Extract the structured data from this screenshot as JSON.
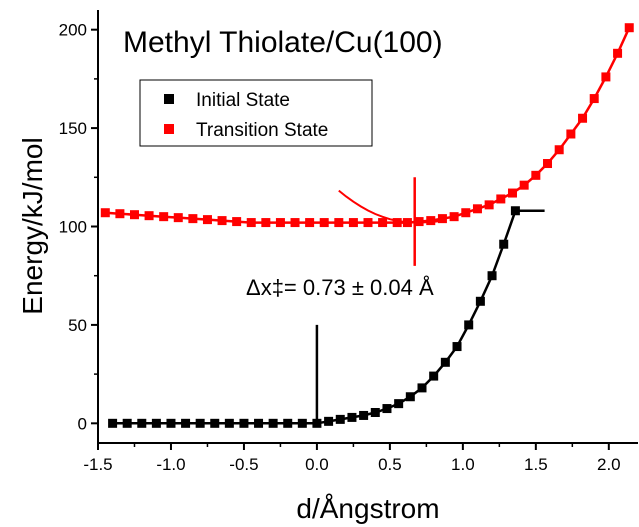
{
  "chart_data": {
    "type": "scatter",
    "title": "Methyl Thiolate/Cu(100)",
    "xlabel": "d/Ångstrom",
    "ylabel": "Energy/kJ/mol",
    "xlim": [
      -1.5,
      2.2
    ],
    "ylim": [
      -10,
      210
    ],
    "xticks": [
      -1.5,
      -1.0,
      -0.5,
      0.0,
      0.5,
      1.0,
      1.5,
      2.0
    ],
    "xtick_labels": [
      "-1.5",
      "-1.0",
      "-0.5",
      "0.0",
      "0.5",
      "1.0",
      "1.5",
      "2.0"
    ],
    "yticks": [
      0,
      50,
      100,
      150,
      200
    ],
    "ytick_labels": [
      "0",
      "50",
      "100",
      "150",
      "200"
    ],
    "legend_position": "upper-left",
    "colors": {
      "initial": "#000000",
      "transition": "#ff0000"
    },
    "series": [
      {
        "name": "Initial State",
        "color": "#000000",
        "x": [
          -1.4,
          -1.3,
          -1.2,
          -1.1,
          -1.0,
          -0.9,
          -0.8,
          -0.7,
          -0.6,
          -0.5,
          -0.4,
          -0.3,
          -0.2,
          -0.1,
          0.0,
          0.08,
          0.16,
          0.24,
          0.32,
          0.4,
          0.48,
          0.56,
          0.64,
          0.72,
          0.8,
          0.88,
          0.96,
          1.04,
          1.12,
          1.2,
          1.28,
          1.36,
          1.44,
          1.52,
          1.56
        ],
        "y": [
          0,
          0,
          0,
          0,
          0,
          0,
          0,
          0,
          0,
          0,
          0,
          0,
          0,
          0,
          0,
          1,
          2,
          3,
          4,
          5.5,
          7.5,
          10,
          13.5,
          18,
          24,
          31,
          39,
          50,
          62,
          75,
          91,
          108,
          108,
          108,
          108
        ]
      },
      {
        "name": "Transition State",
        "color": "#ff0000",
        "x": [
          -1.45,
          -1.35,
          -1.25,
          -1.15,
          -1.05,
          -0.95,
          -0.85,
          -0.75,
          -0.65,
          -0.55,
          -0.45,
          -0.35,
          -0.25,
          -0.15,
          -0.05,
          0.05,
          0.15,
          0.25,
          0.35,
          0.45,
          0.55,
          0.62,
          0.7,
          0.78,
          0.86,
          0.94,
          1.02,
          1.1,
          1.18,
          1.26,
          1.34,
          1.42,
          1.5,
          1.58,
          1.66,
          1.74,
          1.82,
          1.9,
          1.98,
          2.06,
          2.14
        ],
        "y": [
          107,
          106.5,
          106,
          105.5,
          105,
          104.5,
          104,
          103.5,
          103,
          102.5,
          102,
          102,
          102,
          102,
          102,
          102,
          102,
          102,
          102,
          102,
          102,
          102,
          102.5,
          103,
          104,
          105,
          107,
          109,
          111,
          114,
          117,
          121,
          126,
          132,
          139,
          147,
          155,
          165,
          176,
          188,
          201
        ]
      }
    ],
    "annotations": [
      {
        "text": "Δx‡= 0.73 ± 0.04 Å",
        "x": 0.6,
        "y": 70
      }
    ],
    "vertical_markers": [
      {
        "x": 0.0,
        "y_from": 0,
        "y_to": 50,
        "color": "#000000"
      },
      {
        "x": 0.67,
        "y_from": 80,
        "y_to": 125,
        "color": "#ff0000"
      }
    ]
  }
}
